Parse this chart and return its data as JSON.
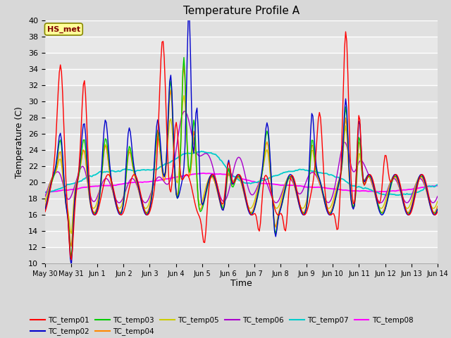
{
  "title": "Temperature Profile A",
  "xlabel": "Time",
  "ylabel": "Temperature (C)",
  "ylim": [
    10,
    40
  ],
  "bg_color": "#d8d8d8",
  "plot_bg_color": "#e8e8e8",
  "annotation_text": "HS_met",
  "annotation_box_color": "#ffff99",
  "annotation_text_color": "#800000",
  "series_colors": {
    "TC_temp01": "#ff0000",
    "TC_temp02": "#0000cc",
    "TC_temp03": "#00cc00",
    "TC_temp04": "#ff8800",
    "TC_temp05": "#cccc00",
    "TC_temp06": "#aa00cc",
    "TC_temp07": "#00cccc",
    "TC_temp08": "#ff00ff"
  },
  "x_tick_labels": [
    "May 30",
    "May 31",
    "Jun 1",
    "Jun 2",
    "Jun 3",
    "Jun 4",
    "Jun 5",
    "Jun 6",
    "Jun 7",
    "Jun 8",
    "Jun 9",
    "Jun 10",
    "Jun 11",
    "Jun 12",
    "Jun 13",
    "Jun 14"
  ],
  "n_days": 15,
  "legend_order": [
    "TC_temp01",
    "TC_temp02",
    "TC_temp03",
    "TC_temp04",
    "TC_temp05",
    "TC_temp06",
    "TC_temp07",
    "TC_temp08"
  ]
}
